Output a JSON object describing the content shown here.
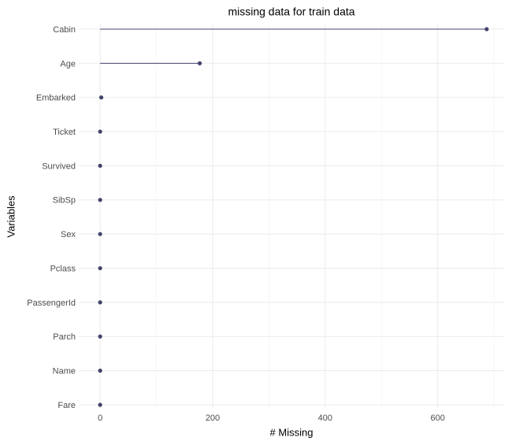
{
  "chart_data": {
    "type": "lollipop",
    "title": "missing data for train data",
    "x_label": "# Missing",
    "y_label": "Variables",
    "categories": [
      "Cabin",
      "Age",
      "Embarked",
      "Ticket",
      "Survived",
      "SibSp",
      "Sex",
      "Pclass",
      "PassengerId",
      "Parch",
      "Name",
      "Fare"
    ],
    "values": [
      687,
      177,
      2,
      0,
      0,
      0,
      0,
      0,
      0,
      0,
      0,
      0
    ],
    "color": "#43436e",
    "xlim": [
      -38,
      718
    ],
    "xticks": [
      0,
      200,
      400,
      600
    ],
    "xminorticks": [
      100,
      300,
      500,
      700
    ],
    "grid": true
  }
}
